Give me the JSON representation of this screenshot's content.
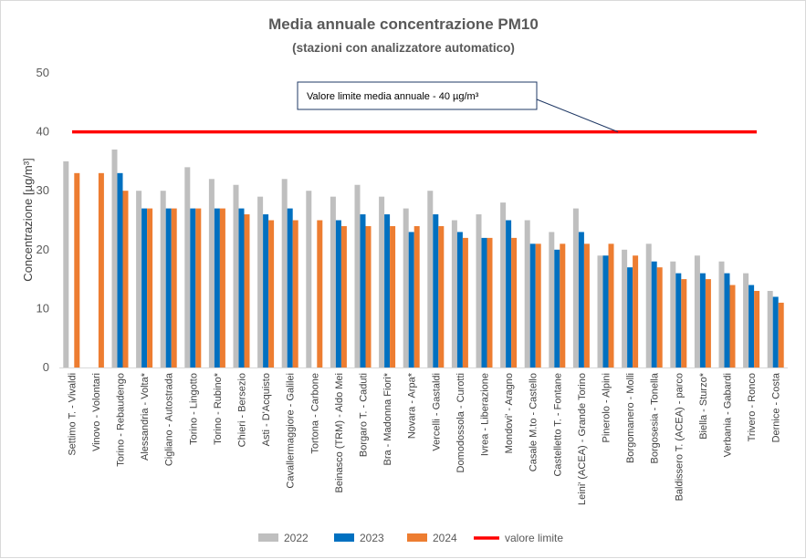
{
  "chart_data": {
    "type": "bar",
    "title": "Media annuale concentrazione PM10",
    "subtitle": "(stazioni con analizzatore automatico)",
    "ylabel": "Concentrazione [µg/m³]",
    "xlabel": "",
    "ylim": [
      0,
      50
    ],
    "yticks": [
      0,
      10,
      20,
      30,
      40,
      50
    ],
    "grid": false,
    "categories": [
      "Settimo T. - Vivaldi",
      "Vinovo - Volontari",
      "Torino - Rebaudengo",
      "Alessandria - Volta*",
      "Cigliano - Autostrada",
      "Torino - Lingotto",
      "Torino - Rubino*",
      "Chieri - Bersezio",
      "Asti - D'Acquisto",
      "Cavallermaggiore - Galilei",
      "Tortona - Carbone",
      "Beinasco (TRM) - Aldo Mei",
      "Borgaro T. - Caduti",
      "Bra - Madonna Fiori*",
      "Novara - Arpa*",
      "Vercelli - Gastaldi",
      "Domodossola - Curotti",
      "Ivrea - Liberazione",
      "Mondovi' - Aragno",
      "Casale M.to - Castello",
      "Castelletto T. - Fontane",
      "Leini' (ACEA) - Grande Torino",
      "Pinerolo - Alpini",
      "Borgomanero - Molli",
      "Borgosesia - Tonella",
      "Baldissero T. (ACEA) - parco",
      "Biella - Sturzo*",
      "Verbania - Gabardi",
      "Trivero - Ronco",
      "Dernice - Costa"
    ],
    "series": [
      {
        "name": "2022",
        "color": "#bfbfbf",
        "values": [
          35,
          null,
          37,
          30,
          30,
          34,
          32,
          31,
          29,
          32,
          30,
          29,
          31,
          29,
          27,
          30,
          25,
          26,
          28,
          25,
          23,
          27,
          19,
          20,
          21,
          18,
          19,
          18,
          16,
          13
        ]
      },
      {
        "name": "2023",
        "color": "#0070c0",
        "values": [
          null,
          null,
          33,
          27,
          27,
          27,
          27,
          27,
          26,
          27,
          null,
          25,
          26,
          26,
          23,
          26,
          23,
          22,
          25,
          21,
          20,
          23,
          19,
          17,
          18,
          16,
          16,
          16,
          14,
          12
        ]
      },
      {
        "name": "2024",
        "color": "#ed7d31",
        "values": [
          33,
          33,
          30,
          27,
          27,
          27,
          27,
          26,
          25,
          25,
          25,
          24,
          24,
          24,
          24,
          24,
          22,
          22,
          22,
          21,
          21,
          21,
          21,
          19,
          17,
          15,
          15,
          14,
          13,
          11
        ]
      }
    ],
    "limit_line": {
      "name": "valore limite",
      "value": 40,
      "color": "#ff0000"
    },
    "annotation": "Valore limite media annuale  - 40 µg/m³",
    "legend_position": "bottom"
  }
}
